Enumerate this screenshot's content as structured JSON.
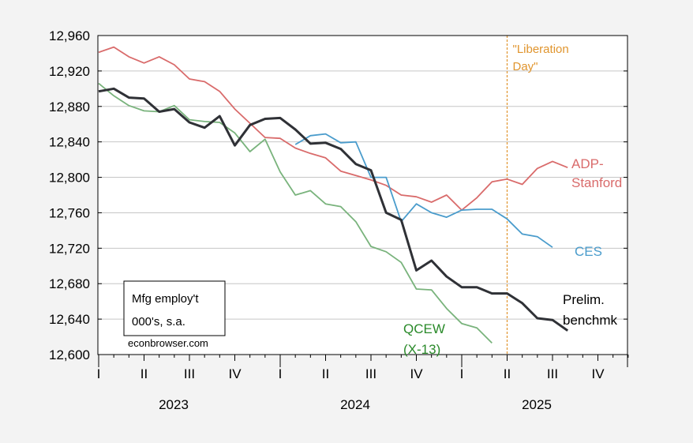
{
  "chart_data": {
    "type": "line",
    "ylim": [
      12600,
      12960
    ],
    "y_ticks": [
      12600,
      12640,
      12680,
      12720,
      12760,
      12800,
      12840,
      12880,
      12920,
      12960
    ],
    "y_tick_labels": [
      "12,600",
      "12,640",
      "12,680",
      "12,720",
      "12,760",
      "12,800",
      "12,840",
      "12,880",
      "12,920",
      "12,960"
    ],
    "x_start": "2023-01",
    "x_end": "2025-12",
    "quarter_ticks": [
      "I",
      "II",
      "III",
      "IV",
      "I",
      "II",
      "III",
      "IV",
      "I",
      "II",
      "III",
      "IV"
    ],
    "year_labels": [
      "2023",
      "2024",
      "2025"
    ],
    "grid": true,
    "vline": {
      "at": "2025-04",
      "label_line1": "\"Liberation",
      "label_line2": "Day\"",
      "color": "#e0952e"
    },
    "annotation_box": {
      "line1": "Mfg employ't",
      "line2": "000's, s.a."
    },
    "source": "econbrowser.com",
    "series": [
      {
        "name": "ADP-Stanford",
        "label_lines": [
          "ADP-",
          "Stanford"
        ],
        "color": "#d96b6b",
        "points": [
          [
            "2023-01",
            12941
          ],
          [
            "2023-02",
            12947
          ],
          [
            "2023-03",
            12936
          ],
          [
            "2023-04",
            12929
          ],
          [
            "2023-05",
            12936
          ],
          [
            "2023-06",
            12927
          ],
          [
            "2023-07",
            12911
          ],
          [
            "2023-08",
            12908
          ],
          [
            "2023-09",
            12897
          ],
          [
            "2023-10",
            12877
          ],
          [
            "2023-11",
            12861
          ],
          [
            "2023-12",
            12845
          ],
          [
            "2024-01",
            12844
          ],
          [
            "2024-02",
            12833
          ],
          [
            "2024-03",
            12827
          ],
          [
            "2024-04",
            12822
          ],
          [
            "2024-05",
            12807
          ],
          [
            "2024-06",
            12802
          ],
          [
            "2024-07",
            12797
          ],
          [
            "2024-08",
            12791
          ],
          [
            "2024-09",
            12780
          ],
          [
            "2024-10",
            12778
          ],
          [
            "2024-11",
            12772
          ],
          [
            "2024-12",
            12780
          ],
          [
            "2025-01",
            12763
          ],
          [
            "2025-02",
            12777
          ],
          [
            "2025-03",
            12795
          ],
          [
            "2025-04",
            12798
          ],
          [
            "2025-05",
            12792
          ],
          [
            "2025-06",
            12810
          ],
          [
            "2025-07",
            12818
          ],
          [
            "2025-08",
            12811
          ]
        ]
      },
      {
        "name": "CES",
        "label_lines": [
          "CES"
        ],
        "color": "#4a9ccc",
        "points": [
          [
            "2024-02",
            12837
          ],
          [
            "2024-03",
            12847
          ],
          [
            "2024-04",
            12849
          ],
          [
            "2024-05",
            12839
          ],
          [
            "2024-06",
            12840
          ],
          [
            "2024-07",
            12800
          ],
          [
            "2024-08",
            12800
          ],
          [
            "2024-09",
            12750
          ],
          [
            "2024-10",
            12770
          ],
          [
            "2024-11",
            12760
          ],
          [
            "2024-12",
            12755
          ],
          [
            "2025-01",
            12763
          ],
          [
            "2025-02",
            12764
          ],
          [
            "2025-03",
            12764
          ],
          [
            "2025-04",
            12753
          ],
          [
            "2025-05",
            12736
          ],
          [
            "2025-06",
            12733
          ],
          [
            "2025-07",
            12721
          ]
        ]
      },
      {
        "name": "Prelim. benchmk",
        "label_lines": [
          "Prelim.",
          "benchmk"
        ],
        "color": "#2f3136",
        "points": [
          [
            "2023-01",
            12897
          ],
          [
            "2023-02",
            12900
          ],
          [
            "2023-03",
            12890
          ],
          [
            "2023-04",
            12889
          ],
          [
            "2023-05",
            12874
          ],
          [
            "2023-06",
            12877
          ],
          [
            "2023-07",
            12862
          ],
          [
            "2023-08",
            12856
          ],
          [
            "2023-09",
            12869
          ],
          [
            "2023-10",
            12836
          ],
          [
            "2023-11",
            12859
          ],
          [
            "2023-12",
            12866
          ],
          [
            "2024-01",
            12867
          ],
          [
            "2024-02",
            12854
          ],
          [
            "2024-03",
            12838
          ],
          [
            "2024-04",
            12839
          ],
          [
            "2024-05",
            12832
          ],
          [
            "2024-06",
            12815
          ],
          [
            "2024-07",
            12808
          ],
          [
            "2024-08",
            12760
          ],
          [
            "2024-09",
            12752
          ],
          [
            "2024-10",
            12695
          ],
          [
            "2024-11",
            12706
          ],
          [
            "2024-12",
            12688
          ],
          [
            "2025-01",
            12676
          ],
          [
            "2025-02",
            12676
          ],
          [
            "2025-03",
            12669
          ],
          [
            "2025-04",
            12669
          ],
          [
            "2025-05",
            12658
          ],
          [
            "2025-06",
            12641
          ],
          [
            "2025-07",
            12639
          ],
          [
            "2025-08",
            12627
          ]
        ]
      },
      {
        "name": "QCEW (X-13)",
        "label_lines": [
          "QCEW",
          "(X-13)"
        ],
        "color": "#79b37c",
        "points": [
          [
            "2023-01",
            12906
          ],
          [
            "2023-02",
            12892
          ],
          [
            "2023-03",
            12881
          ],
          [
            "2023-04",
            12875
          ],
          [
            "2023-05",
            12874
          ],
          [
            "2023-06",
            12881
          ],
          [
            "2023-07",
            12865
          ],
          [
            "2023-08",
            12863
          ],
          [
            "2023-09",
            12862
          ],
          [
            "2023-10",
            12850
          ],
          [
            "2023-11",
            12829
          ],
          [
            "2023-12",
            12843
          ],
          [
            "2024-01",
            12806
          ],
          [
            "2024-02",
            12780
          ],
          [
            "2024-03",
            12785
          ],
          [
            "2024-04",
            12770
          ],
          [
            "2024-05",
            12767
          ],
          [
            "2024-06",
            12750
          ],
          [
            "2024-07",
            12722
          ],
          [
            "2024-08",
            12716
          ],
          [
            "2024-09",
            12704
          ],
          [
            "2024-10",
            12674
          ],
          [
            "2024-11",
            12673
          ],
          [
            "2024-12",
            12652
          ],
          [
            "2025-01",
            12635
          ],
          [
            "2025-02",
            12630
          ],
          [
            "2025-03",
            12613
          ]
        ]
      }
    ]
  }
}
